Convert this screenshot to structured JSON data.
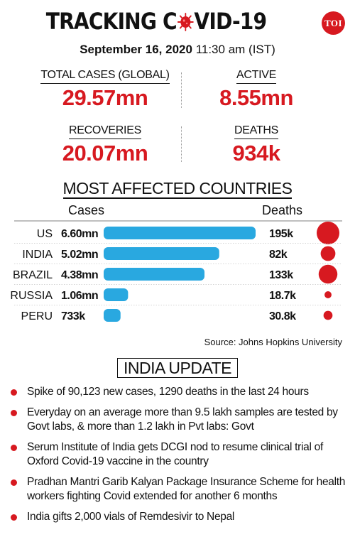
{
  "header": {
    "title_before": "TRACKING C",
    "title_after": "VID-19",
    "logo": "TOI",
    "date": "September 16, 2020",
    "time": "11:30 am (IST)"
  },
  "stats": {
    "total": {
      "label": "TOTAL CASES (GLOBAL)",
      "value": "29.57mn"
    },
    "active": {
      "label": "ACTIVE",
      "value": "8.55mn"
    },
    "recoveries": {
      "label": "RECOVERIES",
      "value": "20.07mn"
    },
    "deaths": {
      "label": "DEATHS",
      "value": "934k"
    }
  },
  "chart_data": {
    "type": "bar",
    "title": "MOST AFFECTED COUNTRIES",
    "cases_header": "Cases",
    "deaths_header": "Deaths",
    "categories": [
      "US",
      "INDIA",
      "BRAZIL",
      "RUSSIA",
      "PERU"
    ],
    "series": [
      {
        "name": "Cases",
        "values": [
          6.6,
          5.02,
          4.38,
          1.06,
          0.733
        ],
        "labels": [
          "6.60mn",
          "5.02mn",
          "4.38mn",
          "1.06mn",
          "733k"
        ]
      },
      {
        "name": "Deaths",
        "values": [
          195,
          82,
          133,
          18.7,
          30.8
        ],
        "labels": [
          "195k",
          "82k",
          "133k",
          "18.7k",
          "30.8k"
        ]
      }
    ],
    "colors": {
      "cases": "#29a8e0",
      "deaths": "#d71920"
    }
  },
  "source": "Source: Johns Hopkins University",
  "india": {
    "title": "INDIA UPDATE",
    "items": [
      "Spike of 90,123 new cases, 1290  deaths in the last 24 hours",
      "Everyday on an average more than 9.5 lakh samples are tested by Govt labs, & more than 1.2 lakh in Pvt labs: Govt",
      "Serum Institute of India gets DCGI nod to resume clinical trial of Oxford Covid-19 vaccine in the country",
      "Pradhan Mantri Garib Kalyan Package Insurance Scheme for health workers fighting Covid extended for another 6 months",
      "India gifts 2,000 vials of Remdesivir to Nepal"
    ]
  }
}
